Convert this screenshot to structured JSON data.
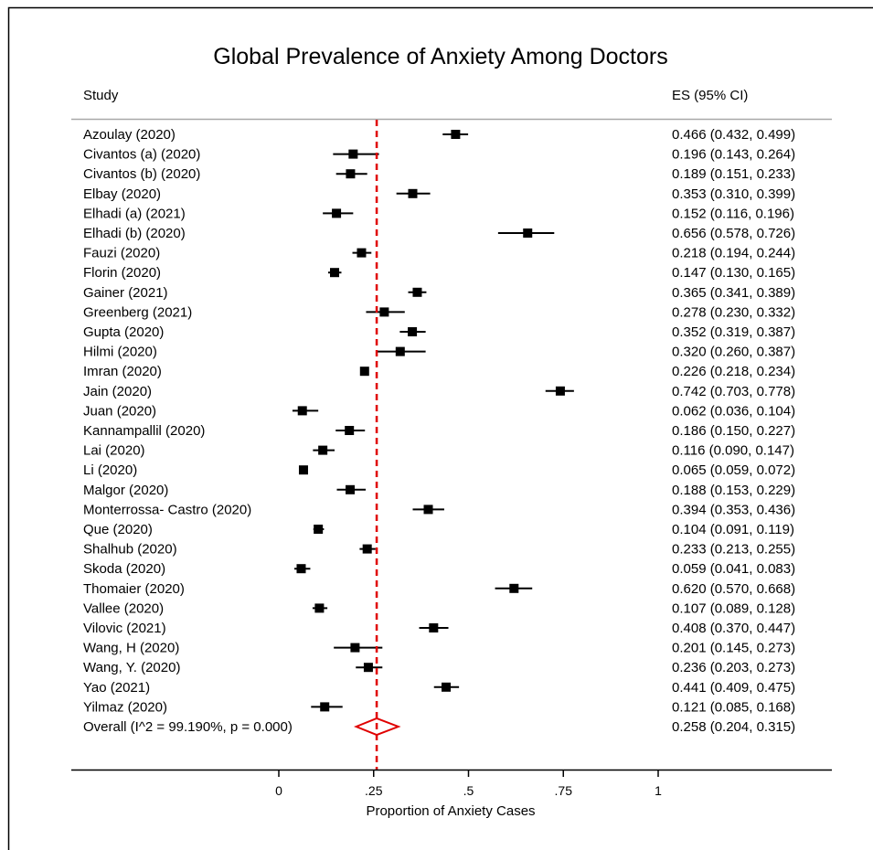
{
  "chart_data": {
    "type": "forest",
    "title": "Global Prevalence of Anxiety Among Doctors",
    "study_header": "Study",
    "es_header": "ES (95% CI)",
    "xlabel": "Proportion of Anxiety Cases",
    "xlim": [
      0,
      1
    ],
    "x_ticks": [
      0,
      0.25,
      0.5,
      0.75,
      1
    ],
    "x_tick_labels": [
      "0",
      ".25",
      ".5",
      ".75",
      "1"
    ],
    "reference_line": 0.258,
    "colors": {
      "overall": "#e00000",
      "marker": "#000000",
      "axis": "#000000",
      "separator": "#a8a8a8"
    },
    "studies": [
      {
        "name": "Azoulay (2020)",
        "es": 0.466,
        "lo": 0.432,
        "hi": 0.499,
        "label": "0.466 (0.432, 0.499)"
      },
      {
        "name": "Civantos  (a) (2020)",
        "es": 0.196,
        "lo": 0.143,
        "hi": 0.264,
        "label": "0.196 (0.143, 0.264)"
      },
      {
        "name": "Civantos (b) (2020)",
        "es": 0.189,
        "lo": 0.151,
        "hi": 0.233,
        "label": "0.189 (0.151, 0.233)"
      },
      {
        "name": "Elbay (2020)",
        "es": 0.353,
        "lo": 0.31,
        "hi": 0.399,
        "label": "0.353 (0.310, 0.399)"
      },
      {
        "name": "Elhadi  (a) (2021)",
        "es": 0.152,
        "lo": 0.116,
        "hi": 0.196,
        "label": "0.152 (0.116, 0.196)"
      },
      {
        "name": "Elhadi (b) (2020)",
        "es": 0.656,
        "lo": 0.578,
        "hi": 0.726,
        "label": "0.656 (0.578, 0.726)"
      },
      {
        "name": "Fauzi (2020)",
        "es": 0.218,
        "lo": 0.194,
        "hi": 0.244,
        "label": "0.218 (0.194, 0.244)"
      },
      {
        "name": "Florin (2020)",
        "es": 0.147,
        "lo": 0.13,
        "hi": 0.165,
        "label": "0.147 (0.130, 0.165)"
      },
      {
        "name": "Gainer (2021)",
        "es": 0.365,
        "lo": 0.341,
        "hi": 0.389,
        "label": "0.365 (0.341, 0.389)"
      },
      {
        "name": "Greenberg (2021)",
        "es": 0.278,
        "lo": 0.23,
        "hi": 0.332,
        "label": "0.278 (0.230, 0.332)"
      },
      {
        "name": "Gupta (2020)",
        "es": 0.352,
        "lo": 0.319,
        "hi": 0.387,
        "label": "0.352 (0.319, 0.387)"
      },
      {
        "name": "Hilmi (2020)",
        "es": 0.32,
        "lo": 0.26,
        "hi": 0.387,
        "label": "0.320 (0.260, 0.387)"
      },
      {
        "name": "Imran (2020)",
        "es": 0.226,
        "lo": 0.218,
        "hi": 0.234,
        "label": "0.226 (0.218, 0.234)"
      },
      {
        "name": "Jain (2020)",
        "es": 0.742,
        "lo": 0.703,
        "hi": 0.778,
        "label": "0.742 (0.703, 0.778)"
      },
      {
        "name": "Juan (2020)",
        "es": 0.062,
        "lo": 0.036,
        "hi": 0.104,
        "label": "0.062 (0.036, 0.104)"
      },
      {
        "name": "Kannampallil (2020)",
        "es": 0.186,
        "lo": 0.15,
        "hi": 0.227,
        "label": "0.186 (0.150, 0.227)"
      },
      {
        "name": "Lai (2020)",
        "es": 0.116,
        "lo": 0.09,
        "hi": 0.147,
        "label": "0.116 (0.090, 0.147)"
      },
      {
        "name": "Li (2020)",
        "es": 0.065,
        "lo": 0.059,
        "hi": 0.072,
        "label": "0.065 (0.059, 0.072)"
      },
      {
        "name": "Malgor (2020)",
        "es": 0.188,
        "lo": 0.153,
        "hi": 0.229,
        "label": "0.188 (0.153, 0.229)"
      },
      {
        "name": "Monterrossa- Castro (2020)",
        "es": 0.394,
        "lo": 0.353,
        "hi": 0.436,
        "label": "0.394 (0.353, 0.436)"
      },
      {
        "name": "Que (2020)",
        "es": 0.104,
        "lo": 0.091,
        "hi": 0.119,
        "label": "0.104 (0.091, 0.119)"
      },
      {
        "name": "Shalhub (2020)",
        "es": 0.233,
        "lo": 0.213,
        "hi": 0.255,
        "label": "0.233 (0.213, 0.255)"
      },
      {
        "name": "Skoda (2020)",
        "es": 0.059,
        "lo": 0.041,
        "hi": 0.083,
        "label": "0.059 (0.041, 0.083)"
      },
      {
        "name": "Thomaier (2020)",
        "es": 0.62,
        "lo": 0.57,
        "hi": 0.668,
        "label": "0.620 (0.570, 0.668)"
      },
      {
        "name": "Vallee (2020)",
        "es": 0.107,
        "lo": 0.089,
        "hi": 0.128,
        "label": "0.107 (0.089, 0.128)"
      },
      {
        "name": "Vilovic (2021)",
        "es": 0.408,
        "lo": 0.37,
        "hi": 0.447,
        "label": "0.408 (0.370, 0.447)"
      },
      {
        "name": "Wang, H (2020)",
        "es": 0.201,
        "lo": 0.145,
        "hi": 0.273,
        "label": "0.201 (0.145, 0.273)"
      },
      {
        "name": "Wang, Y. (2020)",
        "es": 0.236,
        "lo": 0.203,
        "hi": 0.273,
        "label": "0.236 (0.203, 0.273)"
      },
      {
        "name": "Yao (2021)",
        "es": 0.441,
        "lo": 0.409,
        "hi": 0.475,
        "label": "0.441 (0.409, 0.475)"
      },
      {
        "name": "Yilmaz (2020)",
        "es": 0.121,
        "lo": 0.085,
        "hi": 0.168,
        "label": "0.121 (0.085, 0.168)"
      }
    ],
    "overall": {
      "name": "Overall  (I^2 = 99.190%, p = 0.000)",
      "es": 0.258,
      "lo": 0.204,
      "hi": 0.315,
      "label": "0.258 (0.204, 0.315)"
    }
  }
}
